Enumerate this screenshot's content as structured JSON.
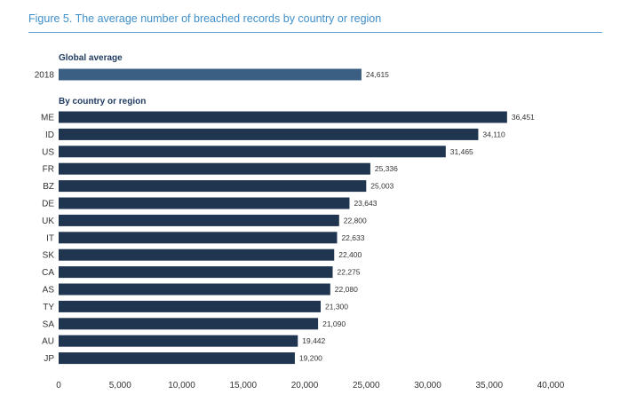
{
  "figure_title": "Figure 5. The average number of breached records by country or region",
  "colors": {
    "global_bar": "#3b5f82",
    "country_bar": "#1f3550",
    "title": "#3f8fc9",
    "axis": "#333333"
  },
  "chart_data": {
    "type": "bar",
    "orientation": "horizontal",
    "title": "Figure 5. The average number of breached records by country or region",
    "xlim": [
      0,
      40000
    ],
    "x_ticks": [
      "0",
      "5,000",
      "10,000",
      "15,000",
      "20,000",
      "25,000",
      "30,000",
      "35,000",
      "40,000"
    ],
    "x_tick_values": [
      0,
      5000,
      10000,
      15000,
      20000,
      25000,
      30000,
      35000,
      40000
    ],
    "grid": false,
    "groups": [
      {
        "heading": "Global average",
        "categories": [
          "2018"
        ],
        "values": [
          24615
        ],
        "value_labels": [
          "24,615"
        ]
      },
      {
        "heading": "By country or region",
        "categories": [
          "ME",
          "ID",
          "US",
          "FR",
          "BZ",
          "DE",
          "UK",
          "IT",
          "SK",
          "CA",
          "AS",
          "TY",
          "SA",
          "AU",
          "JP"
        ],
        "values": [
          36451,
          34110,
          31465,
          25336,
          25003,
          23643,
          22800,
          22633,
          22400,
          22275,
          22080,
          21300,
          21090,
          19442,
          19200
        ],
        "value_labels": [
          "36,451",
          "34,110",
          "31,465",
          "25,336",
          "25,003",
          "23,643",
          "22,800",
          "22,633",
          "22,400",
          "22,275",
          "22,080",
          "21,300",
          "21,090",
          "19,442",
          "19,200"
        ]
      }
    ]
  }
}
